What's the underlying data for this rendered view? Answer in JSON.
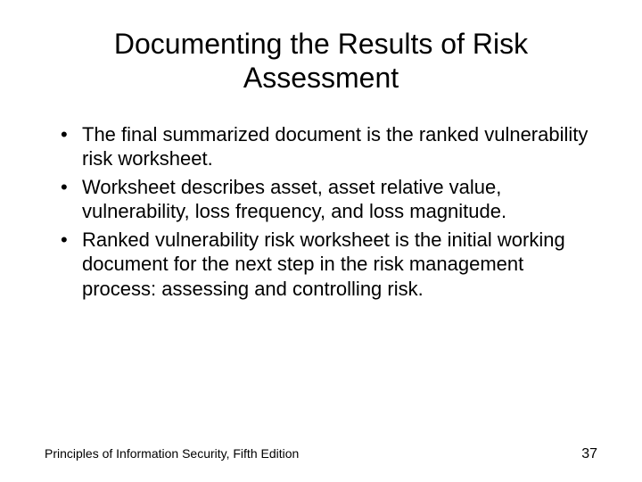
{
  "slide": {
    "title": "Documenting the Results of Risk Assessment",
    "bullets": [
      "The final summarized document is the ranked vulnerability risk worksheet.",
      "Worksheet describes asset, asset relative value, vulnerability, loss frequency, and loss magnitude.",
      "Ranked vulnerability risk worksheet is the initial working document for the next step in the risk management process: assessing and controlling risk."
    ],
    "footer_text": "Principles of Information Security, Fifth Edition",
    "page_number": "37"
  },
  "styling": {
    "background_color": "#ffffff",
    "title_fontsize": 32,
    "title_color": "#000000",
    "title_weight": 400,
    "bullet_fontsize": 22,
    "bullet_color": "#000000",
    "footer_fontsize": 14,
    "page_number_fontsize": 16,
    "font_family": "Arial"
  }
}
